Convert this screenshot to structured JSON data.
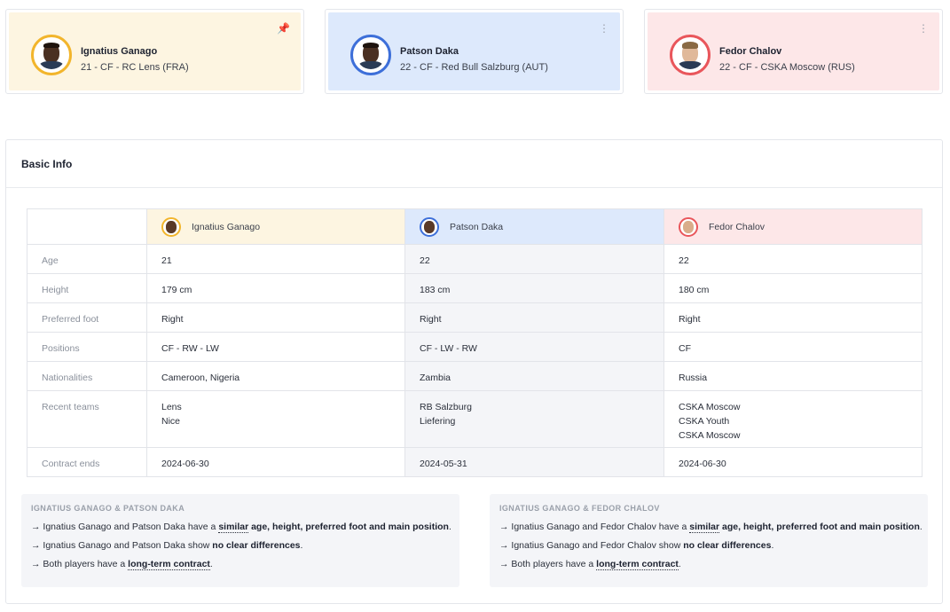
{
  "players": [
    {
      "name": "Ignatius Ganago",
      "meta": "21 - CF - RC Lens (FRA)",
      "color": "#f2b52c",
      "card_icon": "pin-icon",
      "card_icon_glyph": "📌"
    },
    {
      "name": "Patson Daka",
      "meta": "22 - CF - Red Bull Salzburg (AUT)",
      "color": "#3d6fd9",
      "card_icon": "more-vertical-icon",
      "card_icon_glyph": "⋮"
    },
    {
      "name": "Fedor Chalov",
      "meta": "22 - CF - CSKA Moscow (RUS)",
      "color": "#e9565b",
      "card_icon": "more-vertical-icon",
      "card_icon_glyph": "⋮"
    }
  ],
  "basic_info": {
    "title": "Basic Info",
    "rows": [
      {
        "label": "Age",
        "values": [
          "21",
          "22",
          "22"
        ]
      },
      {
        "label": "Height",
        "values": [
          "179 cm",
          "183 cm",
          "180 cm"
        ]
      },
      {
        "label": "Preferred foot",
        "values": [
          "Right",
          "Right",
          "Right"
        ]
      },
      {
        "label": "Positions",
        "values": [
          "CF - RW - LW",
          "CF - LW - RW",
          "CF"
        ]
      },
      {
        "label": "Nationalities",
        "values": [
          "Cameroon, Nigeria",
          "Zambia",
          "Russia"
        ]
      },
      {
        "label": "Recent teams",
        "values": [
          [
            "Lens",
            "Nice"
          ],
          [
            "RB Salzburg",
            "Liefering"
          ],
          [
            "CSKA Moscow",
            "CSKA Youth",
            "CSKA Moscow"
          ]
        ]
      },
      {
        "label": "Contract ends",
        "values": [
          "2024-06-30",
          "2024-05-31",
          "2024-06-30"
        ]
      }
    ]
  },
  "comparisons": [
    {
      "title": "IGNATIUS GANAGO & PATSON DAKA",
      "line1": {
        "pre": "→ Ignatius Ganago and Patson Daka have a ",
        "highlight": "similar",
        "post": " age, height, preferred foot and main position",
        "end": "."
      },
      "line2": {
        "pre": "→ Ignatius Ganago and Patson Daka show ",
        "bold": "no clear differences",
        "end": "."
      },
      "line3": {
        "pre": "→ Both players have a ",
        "highlight": "long-term contract",
        "end": "."
      }
    },
    {
      "title": "IGNATIUS GANAGO & FEDOR CHALOV",
      "line1": {
        "pre": "→ Ignatius Ganago and Fedor Chalov have a ",
        "highlight": "similar",
        "post": " age, height, preferred foot and main position",
        "end": "."
      },
      "line2": {
        "pre": "→ Ignatius Ganago and Fedor Chalov show ",
        "bold": "no clear differences",
        "end": "."
      },
      "line3": {
        "pre": "→ Both players have a ",
        "highlight": "long-term contract",
        "end": "."
      }
    }
  ]
}
